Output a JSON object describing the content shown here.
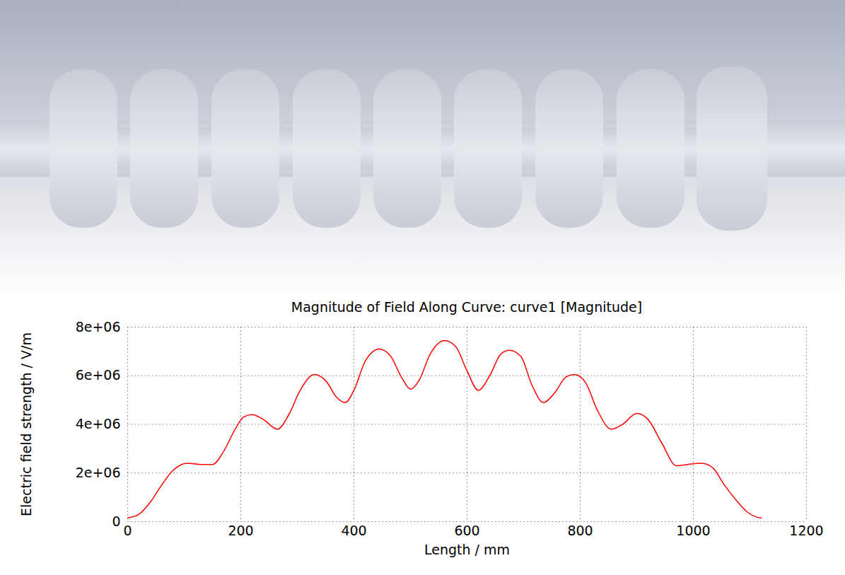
{
  "chart_data": {
    "type": "line",
    "title": "Magnitude of Field Along Curve: curve1 [Magnitude]",
    "x_label": "Length / mm",
    "y_label": "Electric field strength / V/m",
    "x": [
      0,
      20,
      40,
      60,
      80,
      105,
      130,
      150,
      170,
      190,
      205,
      220,
      240,
      265,
      285,
      305,
      330,
      350,
      370,
      385,
      400,
      420,
      445,
      465,
      485,
      500,
      515,
      535,
      560,
      580,
      600,
      620,
      640,
      660,
      675,
      695,
      715,
      735,
      755,
      775,
      790,
      810,
      830,
      855,
      875,
      900,
      920,
      945,
      970,
      990,
      1015,
      1035,
      1055,
      1075,
      1095,
      1110,
      1120
    ],
    "values": [
      150000,
      300000,
      800000,
      1500000,
      2100000,
      2400000,
      2350000,
      2350000,
      2900000,
      3800000,
      4300000,
      4400000,
      4200000,
      3800000,
      4400000,
      5400000,
      6050000,
      5800000,
      5100000,
      4900000,
      5400000,
      6600000,
      7100000,
      6800000,
      5900000,
      5450000,
      5800000,
      6900000,
      7450000,
      7200000,
      6200000,
      5400000,
      6000000,
      6900000,
      7050000,
      6800000,
      5600000,
      4900000,
      5300000,
      5950000,
      6050000,
      5700000,
      4600000,
      3800000,
      4000000,
      4450000,
      4200000,
      3200000,
      2300000,
      2350000,
      2400000,
      2200000,
      1500000,
      900000,
      400000,
      200000,
      150000
    ],
    "color": "#ff0000",
    "xlim": [
      0,
      1200
    ],
    "xticks": [
      0,
      200,
      400,
      600,
      800,
      1000,
      1200
    ],
    "ylim": [
      0,
      8000000
    ],
    "yticks": [
      0,
      {
        "value": 2000000,
        "label": "2e+06"
      },
      {
        "value": 4000000,
        "label": "4e+06"
      },
      {
        "value": 6000000,
        "label": "6e+06"
      },
      {
        "value": 8000000,
        "label": "8e+06"
      }
    ],
    "grid": true
  }
}
